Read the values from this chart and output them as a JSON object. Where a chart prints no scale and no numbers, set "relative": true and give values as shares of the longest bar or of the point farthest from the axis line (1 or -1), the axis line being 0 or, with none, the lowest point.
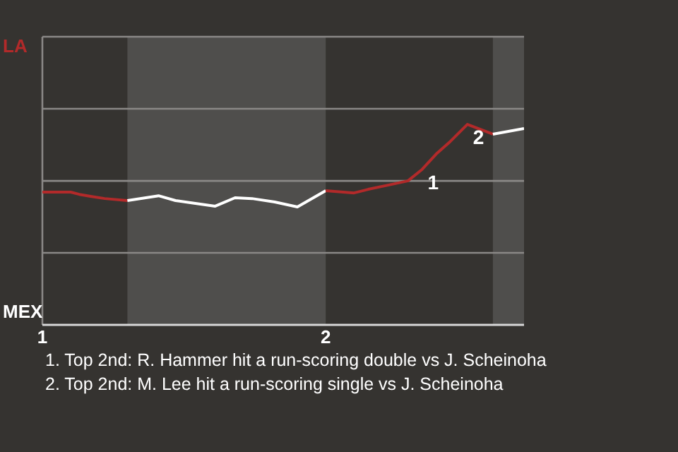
{
  "chart_data": {
    "type": "line",
    "relative": true,
    "tick_labels": "x",
    "line_style": "solid",
    "marker": "none",
    "xlim": [
      1,
      2.7
    ],
    "xticks": [
      1,
      2
    ],
    "series": [
      {
        "color": "#b22a2a",
        "x": [
          1.0,
          1.1,
          1.13,
          1.17,
          1.22,
          1.3
        ],
        "values": [
          0.662,
          0.662,
          0.651,
          0.641,
          0.63,
          0.62
        ]
      },
      {
        "color": "#ffffff",
        "x": [
          1.3,
          1.41,
          1.47,
          1.54,
          1.61,
          1.68,
          1.74,
          1.82,
          1.9,
          2.0
        ],
        "values": [
          0.62,
          0.644,
          0.62,
          0.606,
          0.592,
          0.634,
          0.63,
          0.613,
          0.588,
          0.669
        ]
      },
      {
        "color": "#b22a2a",
        "x": [
          2.0,
          2.1,
          2.15,
          2.22,
          2.29,
          2.34,
          2.39,
          2.44,
          2.5,
          2.59
        ],
        "values": [
          0.669,
          0.658,
          0.676,
          0.697,
          0.718,
          0.775,
          0.852,
          0.915,
          1.0,
          0.951
        ]
      },
      {
        "color": "#ffffff",
        "x": [
          2.59,
          2.7
        ],
        "values": [
          0.951,
          0.979
        ]
      }
    ],
    "ref_lines": [
      {
        "axis": "y",
        "value": 1.078,
        "color": "#8a8886"
      },
      {
        "axis": "y",
        "value": 0.718,
        "color": "#8a8886"
      },
      {
        "axis": "y",
        "value": 0.359,
        "color": "#8a8886"
      }
    ],
    "bands": [
      {
        "axis": "x",
        "from": 1.3,
        "to": 2.0,
        "color": "#4f4e4c"
      },
      {
        "axis": "x",
        "from": 2.59,
        "to": 2.7,
        "color": "#4f4e4c"
      }
    ],
    "annotations": [
      "LA",
      "MEX",
      {
        "text": "1",
        "x": 2.34,
        "y": 0.775
      },
      {
        "text": "2",
        "x": 2.5,
        "y": 1.0
      },
      "1. Top 2nd: R. Hammer hit a run-scoring double vs J. Scheinoha",
      "2. Top 2nd: M. Lee hit a run-scoring single vs J. Scheinoha"
    ]
  }
}
